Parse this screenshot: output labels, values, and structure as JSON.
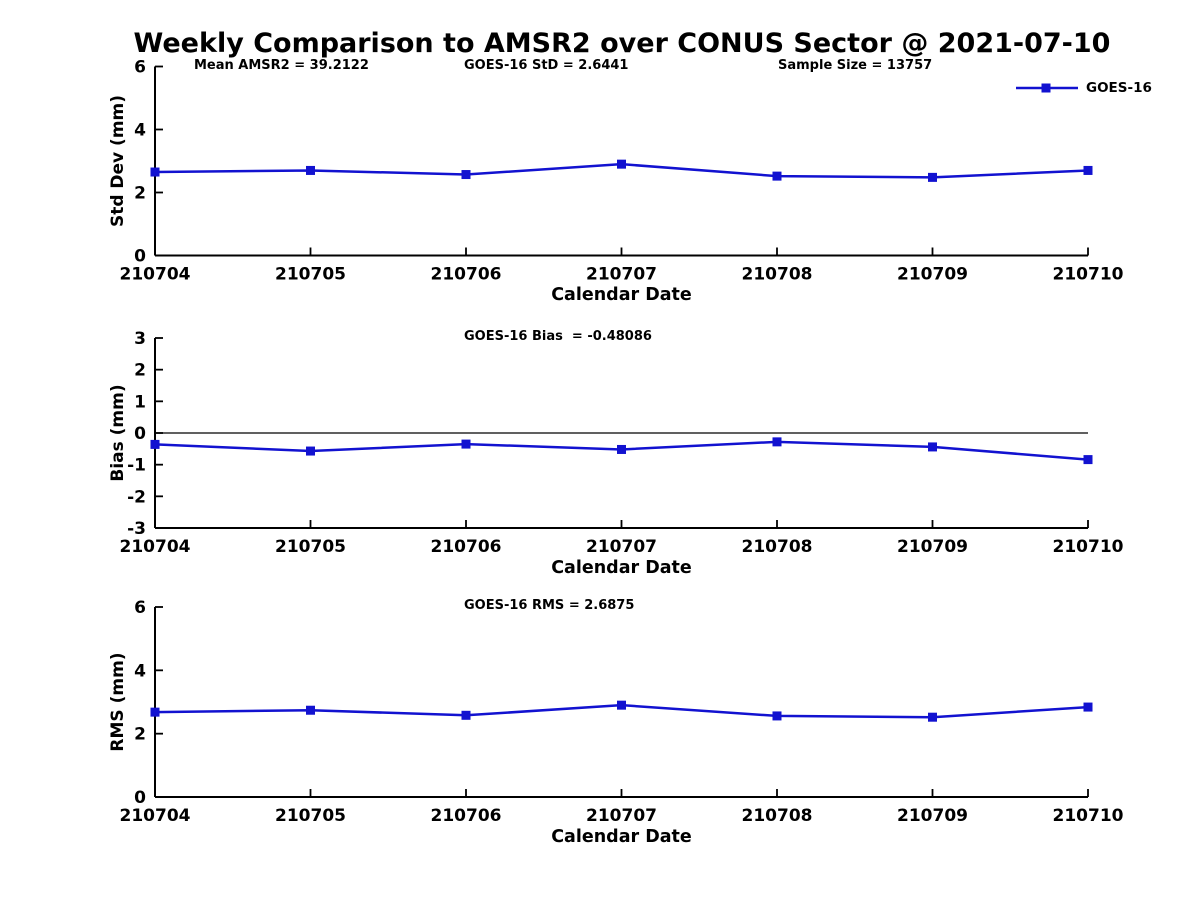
{
  "header": {
    "title": "Weekly Comparison to AMSR2 over CONUS Sector @ 2021-07-10",
    "stats": [
      {
        "label": "Mean AMSR2 = 39.2122"
      },
      {
        "label": "GOES-16 StD = 2.6441"
      },
      {
        "label": "Sample Size = 13757"
      }
    ]
  },
  "legend": {
    "label": "GOES-16",
    "color": "#1212d0",
    "marker": "square",
    "position": "top-right"
  },
  "colors": {
    "series": "#1212d0",
    "axis": "#000000",
    "background": "#ffffff",
    "zero_line": "#000000"
  },
  "chart_data": [
    {
      "type": "line",
      "name": "std-dev-panel",
      "title": "",
      "categories": [
        "210704",
        "210705",
        "210706",
        "210707",
        "210708",
        "210709",
        "210710"
      ],
      "series": [
        {
          "name": "GOES-16",
          "color": "#1212d0",
          "marker": "square",
          "values": [
            2.65,
            2.7,
            2.57,
            2.9,
            2.52,
            2.48,
            2.7
          ]
        }
      ],
      "xlabel": "Calendar Date",
      "ylabel": "Std Dev (mm)",
      "ylim": [
        0,
        6
      ],
      "yticks": [
        0,
        2,
        4,
        6
      ],
      "grid": false,
      "zero_line": false,
      "annotations": [
        "Mean AMSR2 = 39.2122",
        "GOES-16 StD = 2.6441",
        "Sample Size = 13757"
      ],
      "legend_position": "top-right"
    },
    {
      "type": "line",
      "name": "bias-panel",
      "title": "GOES-16 Bias  = -0.48086",
      "categories": [
        "210704",
        "210705",
        "210706",
        "210707",
        "210708",
        "210709",
        "210710"
      ],
      "series": [
        {
          "name": "GOES-16",
          "color": "#1212d0",
          "marker": "square",
          "values": [
            -0.36,
            -0.57,
            -0.35,
            -0.52,
            -0.28,
            -0.44,
            -0.84
          ]
        }
      ],
      "xlabel": "Calendar Date",
      "ylabel": "Bias (mm)",
      "ylim": [
        -3,
        3
      ],
      "yticks": [
        -3,
        -2,
        -1,
        0,
        1,
        2,
        3
      ],
      "grid": false,
      "zero_line": true
    },
    {
      "type": "line",
      "name": "rms-panel",
      "title": "GOES-16 RMS = 2.6875",
      "categories": [
        "210704",
        "210705",
        "210706",
        "210707",
        "210708",
        "210709",
        "210710"
      ],
      "series": [
        {
          "name": "GOES-16",
          "color": "#1212d0",
          "marker": "square",
          "values": [
            2.68,
            2.74,
            2.58,
            2.9,
            2.56,
            2.52,
            2.84
          ]
        }
      ],
      "xlabel": "Calendar Date",
      "ylabel": "RMS (mm)",
      "ylim": [
        0,
        6
      ],
      "yticks": [
        0,
        2,
        4,
        6
      ],
      "grid": false,
      "zero_line": false
    }
  ]
}
